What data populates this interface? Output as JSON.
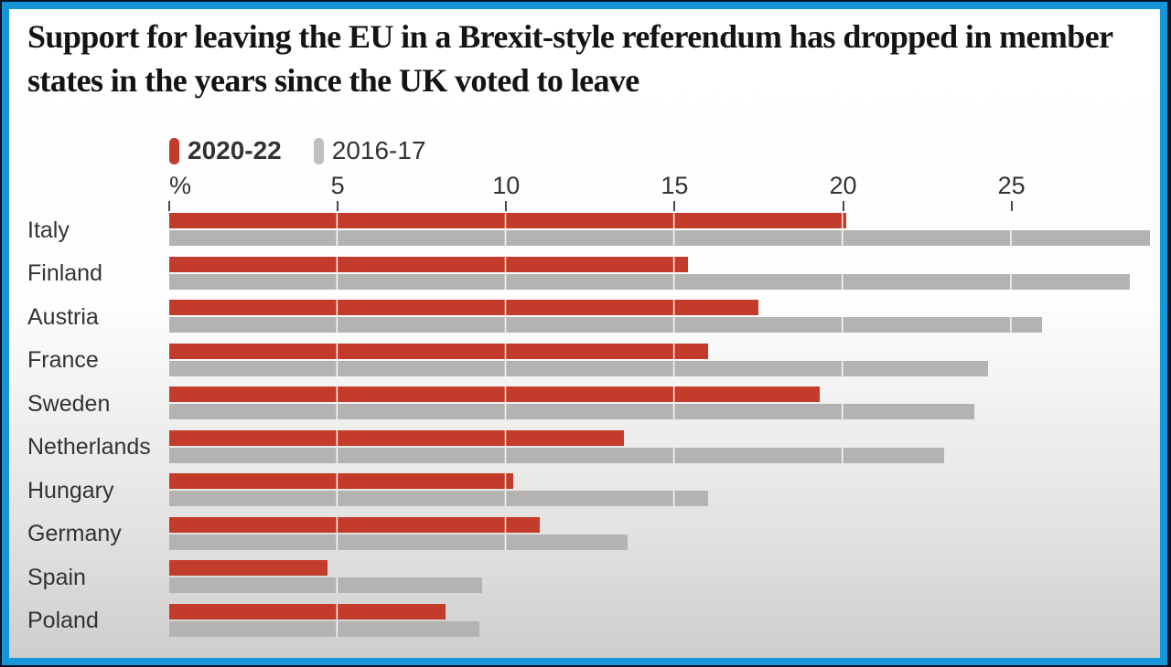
{
  "frame": {
    "border_color": "#1496d8",
    "outer_color": "#0a1526"
  },
  "title": "Support for leaving the EU in a Brexit-style referendum has dropped in member states in the years since the UK voted to leave",
  "chart_data": {
    "type": "bar",
    "orientation": "horizontal",
    "title": "Support for leaving the EU in a Brexit-style referendum has dropped in member states in the years since the UK voted to leave",
    "unit_label": "%",
    "x_axis": {
      "tick_labels": [
        "%",
        "5",
        "10",
        "15",
        "20",
        "25"
      ],
      "tick_values": [
        0,
        5,
        10,
        15,
        20,
        25
      ],
      "min": 0,
      "max": 29.3,
      "gridlines": true
    },
    "legend": {
      "position": "top",
      "items": [
        {
          "label": "2020-22",
          "color": "#c33b2a",
          "bold": true
        },
        {
          "label": "2016-17",
          "color": "#c0bfbd",
          "bold": false
        }
      ]
    },
    "categories": [
      "Italy",
      "Finland",
      "Austria",
      "France",
      "Sweden",
      "Netherlands",
      "Hungary",
      "Germany",
      "Spain",
      "Poland"
    ],
    "series": [
      {
        "name": "2020-22",
        "color": "#c33b2a",
        "values": [
          20.1,
          15.4,
          17.5,
          16.0,
          19.3,
          13.5,
          10.2,
          11.0,
          4.7,
          8.2
        ]
      },
      {
        "name": "2016-17",
        "color": "#b4b3b1",
        "values": [
          29.1,
          28.5,
          25.9,
          24.3,
          23.9,
          23.0,
          16.0,
          13.6,
          9.3,
          9.2
        ]
      }
    ]
  }
}
